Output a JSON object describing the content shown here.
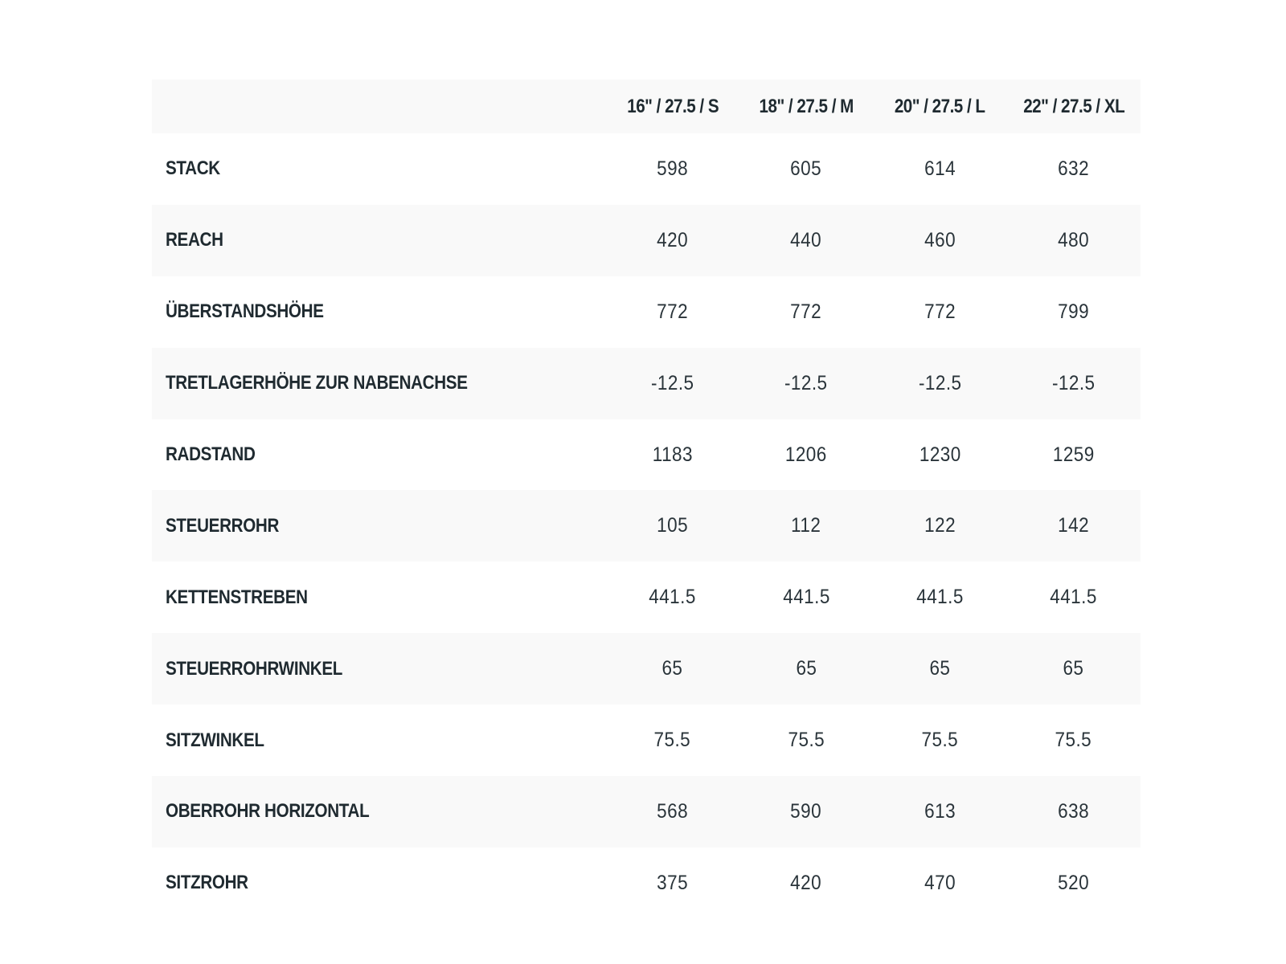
{
  "table": {
    "corner": "",
    "columns": [
      "16\" / 27.5 / S",
      "18\" / 27.5 / M",
      "20\" / 27.5 / L",
      "22\" / 27.5 / XL"
    ],
    "rows": [
      {
        "label": "STACK",
        "values": [
          "598",
          "605",
          "614",
          "632"
        ]
      },
      {
        "label": "REACH",
        "values": [
          "420",
          "440",
          "460",
          "480"
        ]
      },
      {
        "label": "ÜBERSTANDSHÖHE",
        "values": [
          "772",
          "772",
          "772",
          "799"
        ]
      },
      {
        "label": "TRETLAGERHÖHE ZUR NABENACHSE",
        "values": [
          "-12.5",
          "-12.5",
          "-12.5",
          "-12.5"
        ]
      },
      {
        "label": "RADSTAND",
        "values": [
          "1183",
          "1206",
          "1230",
          "1259"
        ]
      },
      {
        "label": "STEUERROHR",
        "values": [
          "105",
          "112",
          "122",
          "142"
        ]
      },
      {
        "label": "KETTENSTREBEN",
        "values": [
          "441.5",
          "441.5",
          "441.5",
          "441.5"
        ]
      },
      {
        "label": "STEUERROHRWINKEL",
        "values": [
          "65",
          "65",
          "65",
          "65"
        ]
      },
      {
        "label": "SITZWINKEL",
        "values": [
          "75.5",
          "75.5",
          "75.5",
          "75.5"
        ]
      },
      {
        "label": "OBERROHR HORIZONTAL",
        "values": [
          "568",
          "590",
          "613",
          "638"
        ]
      },
      {
        "label": "SITZROHR",
        "values": [
          "375",
          "420",
          "470",
          "520"
        ]
      }
    ]
  },
  "colors": {
    "text": "#1f2a30",
    "stripe": "#f9f9f9",
    "background": "#ffffff"
  }
}
